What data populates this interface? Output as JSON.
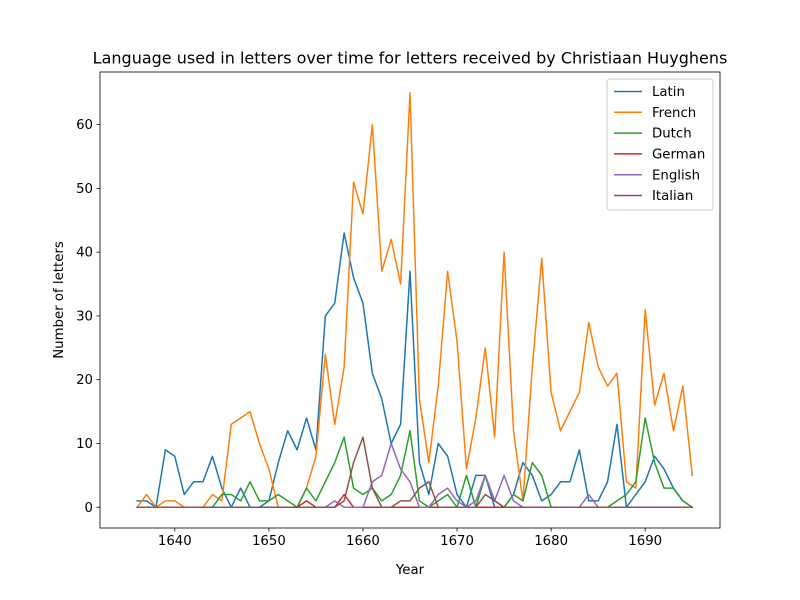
{
  "chart_data": {
    "type": "line",
    "title": "Language used in letters over time for letters received by Christiaan Huyghens",
    "xlabel": "Year",
    "ylabel": "Number of letters",
    "xlim": [
      1632.05,
      1697.95
    ],
    "ylim": [
      -3.25,
      68.25
    ],
    "xticks": [
      1640,
      1650,
      1660,
      1670,
      1680,
      1690
    ],
    "yticks": [
      0,
      10,
      20,
      30,
      40,
      50,
      60
    ],
    "legend_position": "top-right",
    "grid": false,
    "x": [
      1636,
      1637,
      1638,
      1639,
      1640,
      1641,
      1642,
      1643,
      1644,
      1645,
      1646,
      1647,
      1648,
      1649,
      1650,
      1651,
      1652,
      1653,
      1654,
      1655,
      1656,
      1657,
      1658,
      1659,
      1660,
      1661,
      1662,
      1663,
      1664,
      1665,
      1666,
      1667,
      1668,
      1669,
      1670,
      1671,
      1672,
      1673,
      1674,
      1675,
      1676,
      1677,
      1678,
      1679,
      1680,
      1681,
      1682,
      1683,
      1684,
      1685,
      1686,
      1687,
      1688,
      1689,
      1690,
      1691,
      1692,
      1693,
      1694,
      1695
    ],
    "series": [
      {
        "name": "Latin",
        "color": "#1f77b4",
        "values": [
          1,
          1,
          0,
          9,
          8,
          2,
          4,
          4,
          8,
          3,
          0,
          3,
          0,
          0,
          1,
          7,
          12,
          9,
          14,
          9,
          30,
          32,
          43,
          36,
          32,
          21,
          17,
          10,
          13,
          37,
          7,
          2,
          10,
          8,
          2,
          0,
          5,
          5,
          0,
          0,
          2,
          7,
          5,
          1,
          2,
          4,
          4,
          9,
          1,
          1,
          4,
          13,
          0,
          2,
          4,
          8,
          6,
          3,
          1,
          0
        ]
      },
      {
        "name": "French",
        "color": "#ff7f0e",
        "values": [
          0,
          2,
          0,
          1,
          1,
          0,
          0,
          0,
          2,
          1,
          13,
          14,
          15,
          10,
          6,
          0,
          0,
          0,
          3,
          8,
          24,
          13,
          22,
          51,
          46,
          60,
          37,
          42,
          35,
          65,
          17,
          7,
          19,
          37,
          26,
          6,
          14,
          25,
          11,
          40,
          12,
          1,
          22,
          39,
          18,
          12,
          15,
          18,
          29,
          22,
          19,
          21,
          4,
          3,
          31,
          16,
          21,
          12,
          19,
          5
        ]
      },
      {
        "name": "Dutch",
        "color": "#2ca02c",
        "values": [
          0,
          0,
          0,
          0,
          0,
          0,
          0,
          0,
          0,
          2,
          2,
          1,
          4,
          1,
          1,
          2,
          1,
          0,
          3,
          1,
          4,
          7,
          11,
          3,
          2,
          3,
          1,
          2,
          5,
          12,
          1,
          0,
          1,
          2,
          0,
          5,
          0,
          5,
          1,
          0,
          2,
          1,
          7,
          5,
          0,
          0,
          0,
          0,
          0,
          0,
          0,
          1,
          2,
          4,
          14,
          7,
          3,
          3,
          1,
          0
        ]
      },
      {
        "name": "German",
        "color": "#d62728",
        "values": [
          0,
          0,
          0,
          0,
          0,
          0,
          0,
          0,
          0,
          0,
          0,
          0,
          0,
          0,
          0,
          0,
          0,
          0,
          1,
          0,
          0,
          0,
          2,
          0,
          0,
          0,
          0,
          0,
          0,
          0,
          0,
          0,
          0,
          0,
          0,
          0,
          0,
          0,
          0,
          0,
          0,
          0,
          0,
          0,
          0,
          0,
          0,
          0,
          0,
          0,
          0,
          0,
          0,
          0,
          0,
          0,
          0,
          0,
          0,
          0
        ]
      },
      {
        "name": "English",
        "color": "#9467bd",
        "values": [
          0,
          0,
          0,
          0,
          0,
          0,
          0,
          0,
          0,
          0,
          0,
          0,
          0,
          0,
          0,
          0,
          0,
          0,
          0,
          0,
          0,
          1,
          0,
          0,
          0,
          4,
          5,
          10,
          6,
          4,
          0,
          0,
          2,
          3,
          1,
          0,
          1,
          5,
          1,
          5,
          1,
          0,
          0,
          0,
          0,
          0,
          0,
          0,
          2,
          0,
          0,
          0,
          0,
          0,
          0,
          0,
          0,
          0,
          0,
          0
        ]
      },
      {
        "name": "Italian",
        "color": "#8c564b",
        "values": [
          0,
          0,
          0,
          0,
          0,
          0,
          0,
          0,
          0,
          0,
          0,
          0,
          0,
          0,
          0,
          0,
          0,
          0,
          0,
          0,
          0,
          0,
          1,
          7,
          11,
          3,
          0,
          0,
          1,
          1,
          3,
          4,
          0,
          0,
          0,
          0,
          0,
          2,
          1,
          0,
          0,
          0,
          0,
          0,
          0,
          0,
          0,
          0,
          0,
          0,
          0,
          0,
          0,
          0,
          0,
          0,
          0,
          0,
          0,
          0
        ]
      }
    ]
  }
}
